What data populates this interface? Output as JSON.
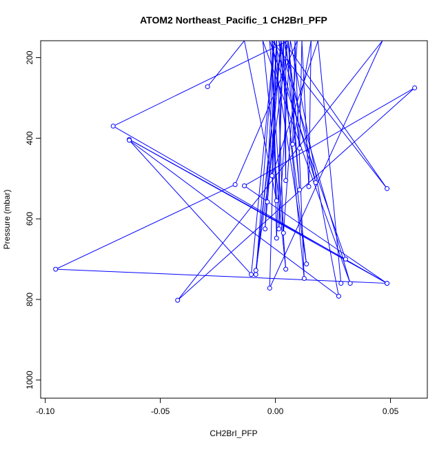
{
  "chart_data": {
    "type": "line",
    "title": "ATOM2 Northeast_Pacific_1 CH2BrI_PFP",
    "xlabel": "CH2BrI_PFP",
    "ylabel": "Pressure (mbar)",
    "xlim": [
      -0.102,
      0.066
    ],
    "ylim": [
      1045,
      158
    ],
    "y_reversed": true,
    "grid": false,
    "x_ticks": [
      -0.1,
      -0.05,
      0.0,
      0.05
    ],
    "x_tick_labels": [
      "-0.10",
      "-0.05",
      "0.00",
      "0.05"
    ],
    "y_ticks": [
      200,
      400,
      600,
      800,
      1000
    ],
    "y_tick_labels": [
      "200",
      "400",
      "600",
      "800",
      "1000"
    ],
    "series": [
      {
        "color": "#0000ff",
        "points": [
          [
            -0.0295,
            272
          ],
          [
            -0.0135,
            158
          ],
          [
            0.0005,
            555
          ],
          [
            -0.0015,
            158
          ],
          [
            0.0135,
            712
          ],
          [
            0.0015,
            158
          ],
          [
            0.0325,
            760
          ],
          [
            -0.0055,
            158
          ],
          [
            0.0045,
            725
          ],
          [
            -0.0025,
            158
          ],
          [
            0.0305,
            700
          ],
          [
            -0.0635,
            403
          ],
          [
            0.0485,
            760
          ],
          [
            -0.0705,
            370
          ],
          [
            0.0055,
            158
          ],
          [
            0.0105,
            425
          ],
          [
            0.0115,
            158
          ],
          [
            0.0145,
            520
          ],
          [
            0.0155,
            158
          ],
          [
            0.0075,
            415
          ],
          [
            0.0085,
            158
          ],
          [
            0.0125,
            748
          ],
          [
            0.0025,
            158
          ],
          [
            -0.0085,
            738
          ],
          [
            -0.0005,
            158
          ],
          [
            -0.0105,
            738
          ],
          [
            -0.0635,
            405
          ],
          [
            0.0275,
            792
          ],
          [
            0.0065,
            158
          ],
          [
            0.0015,
            625
          ],
          [
            0.0025,
            158
          ],
          [
            -0.0045,
            625
          ],
          [
            -0.0005,
            158
          ],
          [
            0.0175,
            510
          ],
          [
            0.0035,
            158
          ],
          [
            0.0005,
            648
          ],
          [
            -0.0015,
            158
          ],
          [
            0.0485,
            525
          ],
          [
            0.0035,
            158
          ],
          [
            0.0045,
            505
          ],
          [
            0.0045,
            158
          ],
          [
            0.0105,
            528
          ],
          [
            0.0055,
            158
          ],
          [
            -0.0085,
            728
          ],
          [
            0.0025,
            158
          ],
          [
            -0.0035,
            558
          ],
          [
            0.0005,
            158
          ],
          [
            0.0035,
            635
          ],
          [
            0.0095,
            158
          ],
          [
            -0.0175,
            515
          ],
          [
            -0.0955,
            725
          ],
          [
            0.0485,
            760
          ],
          [
            -0.0135,
            518
          ],
          [
            0.0605,
            275
          ],
          [
            -0.0425,
            802
          ],
          [
            0.0465,
            158
          ],
          [
            -0.0025,
            772
          ],
          [
            0.0005,
            158
          ],
          [
            -0.0015,
            493
          ],
          [
            0.0185,
            158
          ],
          [
            0.0285,
            760
          ]
        ]
      }
    ]
  }
}
